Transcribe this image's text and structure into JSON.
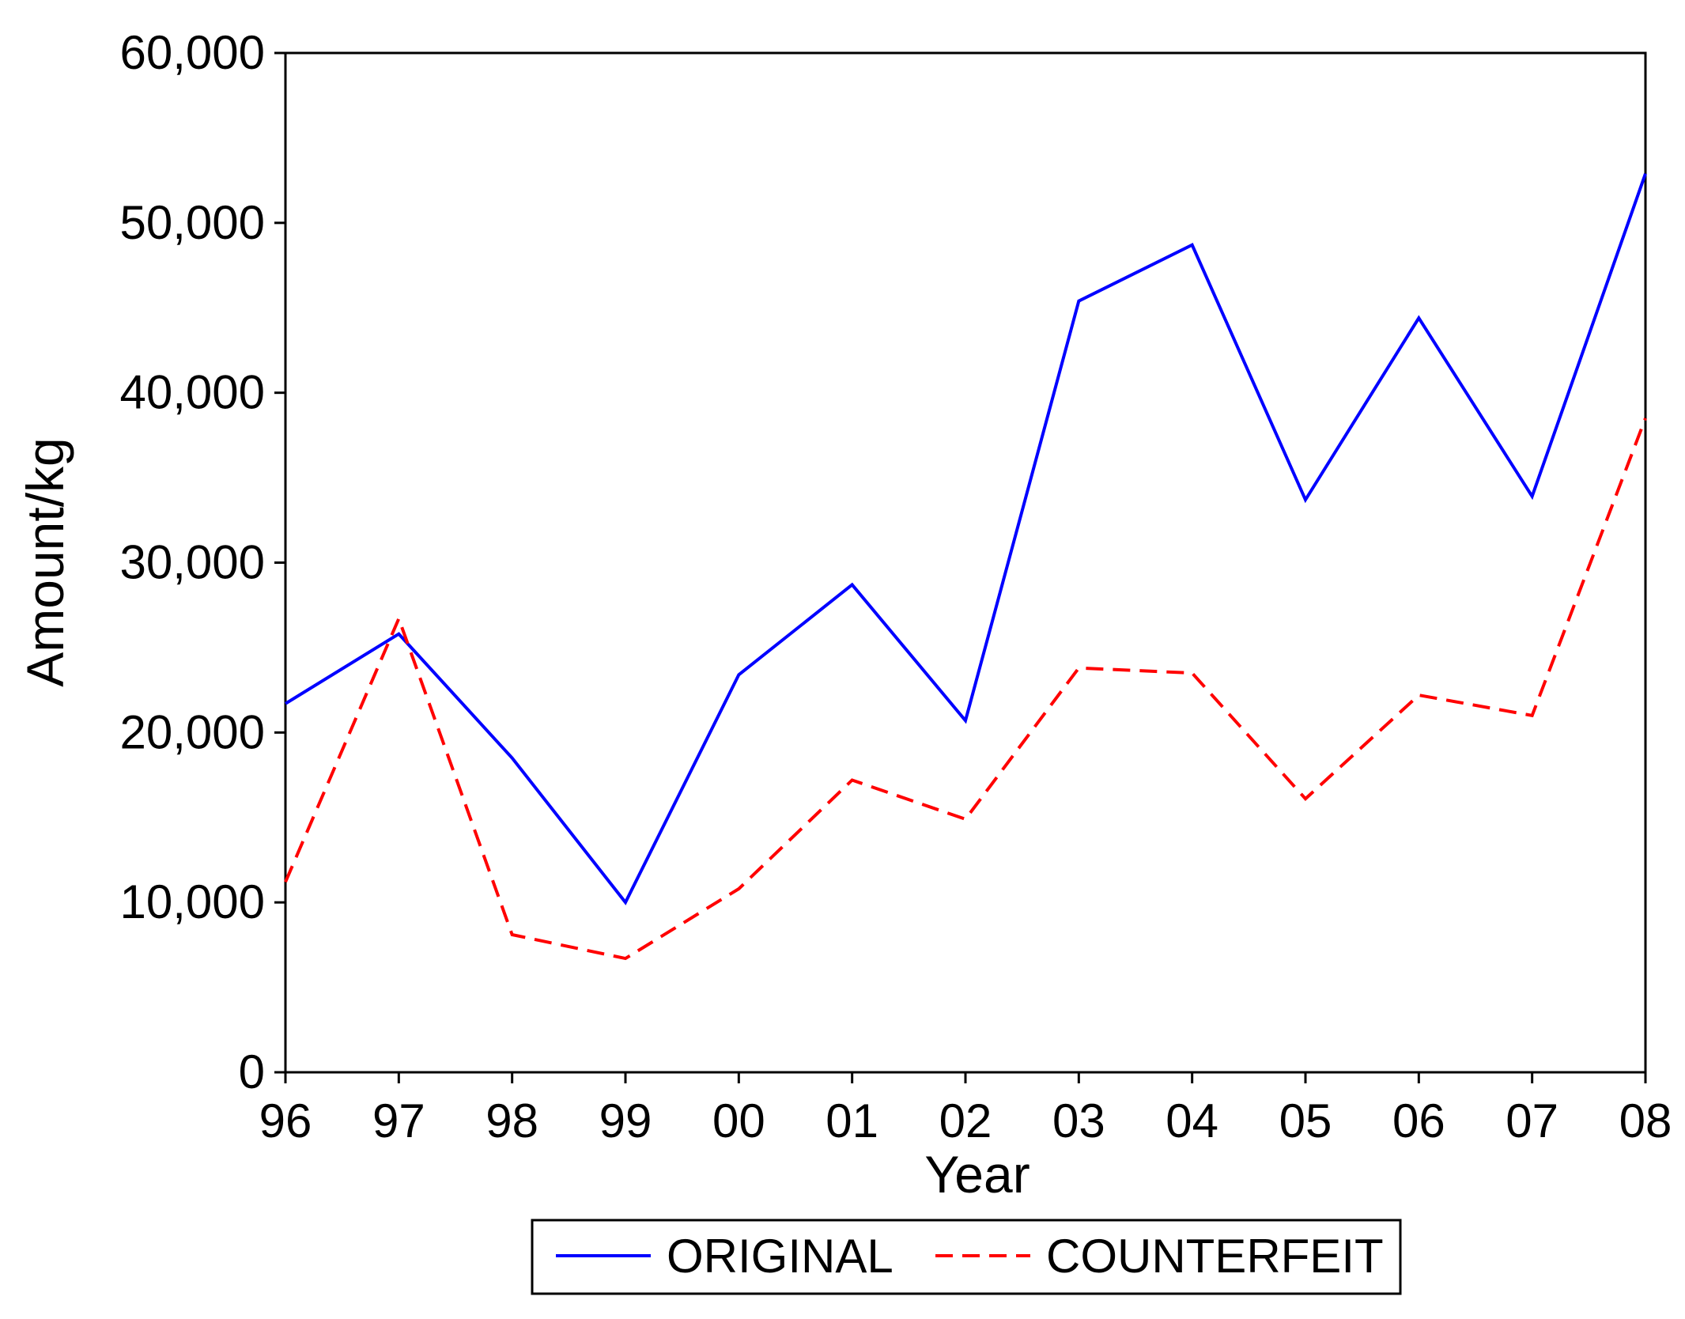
{
  "chart_data": {
    "type": "line",
    "xlabel": "Year",
    "ylabel": "Amount/kg",
    "categories": [
      "96",
      "97",
      "98",
      "99",
      "00",
      "01",
      "02",
      "03",
      "04",
      "05",
      "06",
      "07",
      "08"
    ],
    "ylim": [
      0,
      60000
    ],
    "yticks": [
      0,
      10000,
      20000,
      30000,
      40000,
      50000,
      60000
    ],
    "ytick_labels": [
      "0",
      "10,000",
      "20,000",
      "30,000",
      "40,000",
      "50,000",
      "60,000"
    ],
    "grid": false,
    "legend_position": "bottom",
    "series": [
      {
        "name": "ORIGINAL",
        "color": "#0000FF",
        "line_style": "solid",
        "values": [
          21700,
          25800,
          18500,
          10000,
          23400,
          28700,
          20700,
          45400,
          48700,
          33700,
          44400,
          33900,
          52900
        ]
      },
      {
        "name": "COUNTERFEIT",
        "color": "#FF0000",
        "line_style": "dashed",
        "values": [
          11200,
          26700,
          8100,
          6700,
          10800,
          17200,
          14900,
          23800,
          23500,
          16100,
          22200,
          21000,
          38500
        ]
      }
    ]
  }
}
